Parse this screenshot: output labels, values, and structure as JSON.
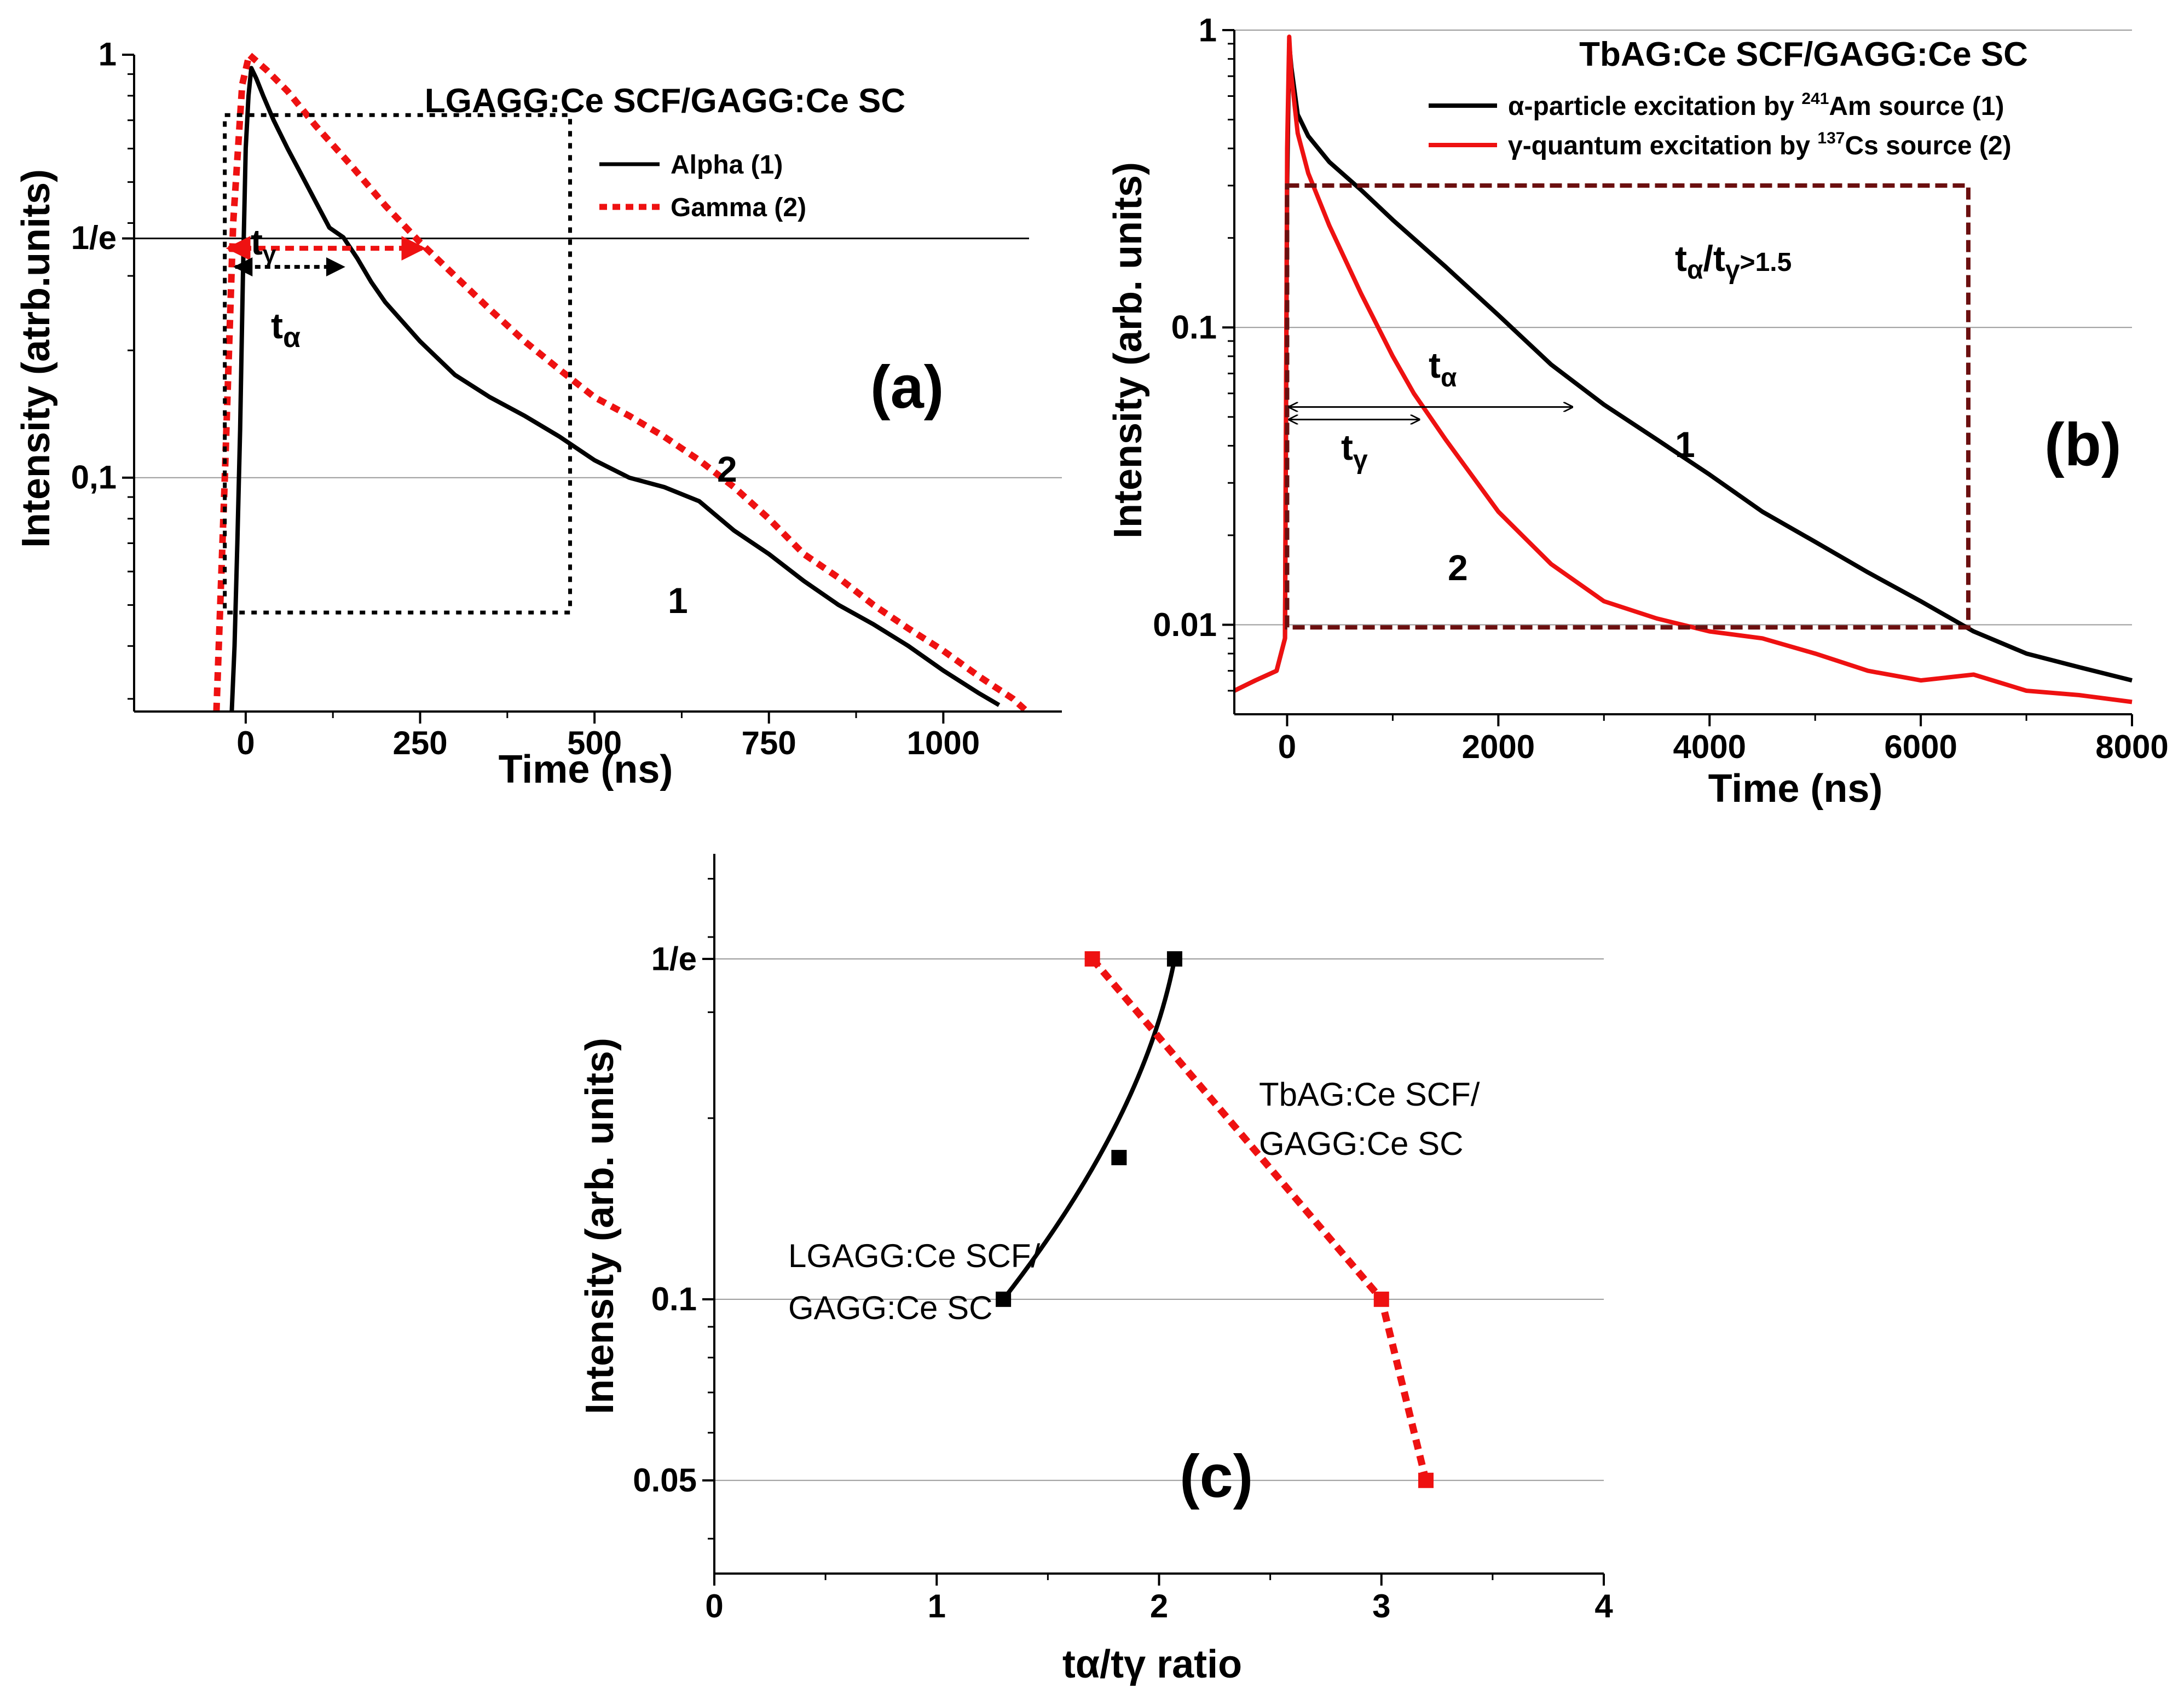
{
  "figure": {
    "panels": [
      "a",
      "b",
      "c"
    ]
  },
  "chart_data": [
    {
      "id": "a",
      "type": "line",
      "title": "LGAGG:Ce SCF/GAGG:Ce SC",
      "panel_label": "(a)",
      "xlabel": "Time (ns)",
      "ylabel": "Intensity (atrb.units)",
      "x_scale": "linear",
      "y_scale": "log",
      "xlim": [
        -160,
        1170
      ],
      "ylim": [
        0.028,
        1.0
      ],
      "xticks": [
        0,
        250,
        500,
        750,
        1000
      ],
      "xtick_labels": [
        "0",
        "250",
        "500",
        "750",
        "1000"
      ],
      "yticks": [
        1.0,
        0.3679,
        0.1
      ],
      "ytick_labels": [
        "1",
        "1/e",
        "0,1"
      ],
      "legend": [
        {
          "name": "Alpha (1)",
          "color": "#000000",
          "dash": "solid"
        },
        {
          "name": "Gamma (2)",
          "color": "#ee1111",
          "dash": "dotted"
        }
      ],
      "series": [
        {
          "name": "Alpha (1)",
          "label": "1",
          "color": "#000000",
          "dash": "solid",
          "x": [
            -20,
            -16,
            -12,
            -8,
            -4,
            0,
            4,
            8,
            15,
            25,
            40,
            60,
            80,
            100,
            120,
            140,
            160,
            180,
            200,
            250,
            300,
            350,
            400,
            450,
            500,
            550,
            600,
            650,
            700,
            750,
            800,
            850,
            900,
            950,
            1000,
            1050,
            1080
          ],
          "y": [
            0.028,
            0.04,
            0.07,
            0.13,
            0.3,
            0.6,
            0.8,
            0.93,
            0.88,
            0.8,
            0.7,
            0.6,
            0.52,
            0.45,
            0.39,
            0.37,
            0.33,
            0.29,
            0.26,
            0.21,
            0.175,
            0.155,
            0.14,
            0.125,
            0.11,
            0.1,
            0.095,
            0.088,
            0.075,
            0.066,
            0.057,
            0.05,
            0.045,
            0.04,
            0.035,
            0.031,
            0.029
          ]
        },
        {
          "name": "Gamma (2)",
          "label": "2",
          "color": "#ee1111",
          "dash": "dotted",
          "x": [
            -42,
            -30,
            -18,
            -5,
            5,
            30,
            60,
            100,
            150,
            200,
            250,
            300,
            350,
            400,
            450,
            500,
            550,
            600,
            650,
            700,
            750,
            800,
            850,
            900,
            950,
            1000,
            1050,
            1100,
            1120
          ],
          "y": [
            0.028,
            0.1,
            0.4,
            0.85,
            1.0,
            0.92,
            0.82,
            0.68,
            0.55,
            0.44,
            0.36,
            0.3,
            0.25,
            0.21,
            0.18,
            0.155,
            0.14,
            0.125,
            0.11,
            0.095,
            0.08,
            0.066,
            0.058,
            0.05,
            0.044,
            0.039,
            0.034,
            0.03,
            0.028
          ]
        }
      ],
      "annotations": {
        "t_gamma": "t",
        "t_gamma_sub": "γ",
        "t_alpha": "t",
        "t_alpha_sub": "α",
        "box": {
          "x0": -30,
          "x1": 465,
          "y0": 0.048,
          "y1": 0.72
        },
        "e_level": 0.3679,
        "t_gamma_arrow": {
          "x0": -25,
          "x1": 255
        },
        "t_alpha_arrow": {
          "x0": -15,
          "x1": 140
        }
      }
    },
    {
      "id": "b",
      "type": "line",
      "title": "TbAG:Ce SCF/GAGG:Ce SC",
      "panel_label": "(b)",
      "xlabel": "Time (ns)",
      "ylabel": "Intensity (arb. units)",
      "x_scale": "linear",
      "y_scale": "log",
      "xlim": [
        -500,
        8000
      ],
      "ylim": [
        0.005,
        1.0
      ],
      "xticks": [
        0,
        2000,
        4000,
        6000,
        8000
      ],
      "xtick_labels": [
        "0",
        "2000",
        "4000",
        "6000",
        "8000"
      ],
      "yticks": [
        1.0,
        0.1,
        0.01
      ],
      "ytick_labels": [
        "1",
        "0.1",
        "0.01"
      ],
      "legend": [
        {
          "pre": "α-particle excitation by ",
          "sup": "241",
          "post": "Am source (1)",
          "color": "#000000"
        },
        {
          "pre": "γ-quantum excitation by ",
          "sup": "137",
          "post": "Cs source (2)",
          "color": "#ee1111"
        }
      ],
      "series": [
        {
          "name": "α-particle excitation by 241Am source (1)",
          "label": "1",
          "color": "#000000",
          "x": [
            -500,
            -300,
            -100,
            -20,
            0,
            20,
            40,
            100,
            200,
            400,
            700,
            1000,
            1500,
            2000,
            2500,
            3000,
            3500,
            4000,
            4500,
            5000,
            5500,
            6000,
            6500,
            7000,
            7500,
            8000
          ],
          "y": [
            0.006,
            0.0065,
            0.007,
            0.009,
            0.3,
            0.9,
            0.75,
            0.52,
            0.44,
            0.36,
            0.29,
            0.23,
            0.16,
            0.11,
            0.075,
            0.055,
            0.042,
            0.032,
            0.024,
            0.019,
            0.015,
            0.012,
            0.0095,
            0.008,
            0.0072,
            0.0065
          ]
        },
        {
          "name": "γ-quantum excitation by 137Cs source (2)",
          "label": "2",
          "color": "#ee1111",
          "x": [
            -500,
            -300,
            -100,
            -20,
            0,
            20,
            40,
            100,
            200,
            400,
            700,
            1000,
            1200,
            1500,
            2000,
            2500,
            3000,
            3500,
            4000,
            4500,
            5000,
            5500,
            6000,
            6500,
            7000,
            7500,
            8000
          ],
          "y": [
            0.006,
            0.0065,
            0.007,
            0.009,
            0.4,
            0.95,
            0.7,
            0.45,
            0.33,
            0.22,
            0.13,
            0.08,
            0.06,
            0.042,
            0.024,
            0.016,
            0.012,
            0.0105,
            0.0095,
            0.009,
            0.008,
            0.007,
            0.0065,
            0.0068,
            0.006,
            0.0058,
            0.0055
          ]
        }
      ],
      "annotations": {
        "ratio_main": "t",
        "ratio_sub1": "α",
        "ratio_slash": "/t",
        "ratio_sub2": "γ",
        "ratio_tail": ">1.5",
        "t_alpha": "t",
        "t_alpha_sub": "α",
        "t_gamma": "t",
        "t_gamma_sub": "γ",
        "box": {
          "x0": 0,
          "x1": 6450,
          "y0": 0.0098,
          "y1": 0.3
        },
        "t_alpha_arrow": {
          "x0": 20,
          "x1": 2700,
          "y": 0.054
        },
        "t_gamma_arrow": {
          "x0": 20,
          "x1": 1250,
          "y": 0.049
        }
      }
    },
    {
      "id": "c",
      "type": "line",
      "panel_label": "(c)",
      "xlabel": "tα/tγ ratio",
      "ylabel": "Intensity (arb. units)",
      "x_scale": "linear",
      "y_scale": "log",
      "xlim": [
        0,
        4
      ],
      "ylim": [
        0.035,
        0.55
      ],
      "xticks": [
        0,
        1,
        2,
        3,
        4
      ],
      "xtick_labels": [
        "0",
        "1",
        "2",
        "3",
        "4"
      ],
      "yticks": [
        0.3679,
        0.1,
        0.05
      ],
      "ytick_labels": [
        "1/e",
        "0.1",
        "0.05"
      ],
      "series": [
        {
          "name": "LGAGG:Ce SCF/GAGG:Ce SC",
          "color": "#000000",
          "dash": "solid",
          "x": [
            1.3,
            1.82,
            2.07
          ],
          "y": [
            0.1,
            0.172,
            0.3679
          ]
        },
        {
          "name": "TbAG:Ce SCF/GAGG:Ce SC",
          "color": "#ee1111",
          "dash": "dotted",
          "x": [
            1.7,
            3.0,
            3.2
          ],
          "y": [
            0.3679,
            0.1,
            0.05
          ]
        }
      ],
      "annotations": {
        "lgagg_line1": "LGAGG:Ce SCF/",
        "lgagg_line2": "GAGG:Ce SC",
        "tbag_line1": "TbAG:Ce SCF/",
        "tbag_line2": "GAGG:Ce SC"
      }
    }
  ]
}
